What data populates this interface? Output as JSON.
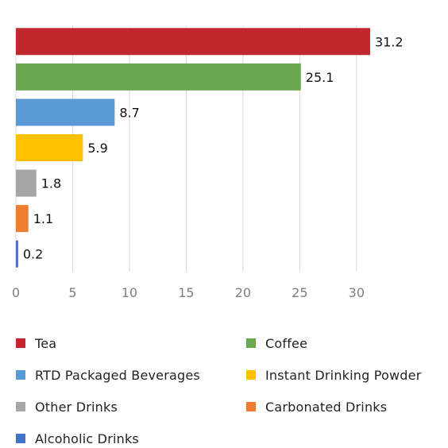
{
  "chart_data": {
    "type": "bar",
    "orientation": "horizontal",
    "categories": [
      "Tea",
      "Coffee",
      "RTD Packaged Beverages",
      "Instant Drinking Powder",
      "Other Drinks",
      "Carbonated Drinks",
      "Alcoholic Drinks"
    ],
    "values": [
      31.2,
      25.1,
      8.7,
      5.9,
      1.8,
      1.1,
      0.2
    ],
    "colors": [
      "#c1272d",
      "#6aa84f",
      "#5b9bd5",
      "#ffc000",
      "#a6a6a6",
      "#ed7d31",
      "#4472c4"
    ],
    "x_ticks": [
      "0",
      "5",
      "10",
      "15",
      "20",
      "25",
      "30"
    ],
    "xlim": [
      0,
      34
    ],
    "grid": "vertical",
    "legend_placement": "bottom",
    "title": "",
    "xlabel": "",
    "ylabel": ""
  },
  "legend": {
    "items": [
      {
        "label": "Tea",
        "color": "#c1272d"
      },
      {
        "label": "Coffee",
        "color": "#6aa84f"
      },
      {
        "label": "RTD Packaged Beverages",
        "color": "#5b9bd5"
      },
      {
        "label": "Instant Drinking Powder",
        "color": "#ffc000"
      },
      {
        "label": "Other Drinks",
        "color": "#a6a6a6"
      },
      {
        "label": "Carbonated Drinks",
        "color": "#ed7d31"
      },
      {
        "label": "Alcoholic Drinks",
        "color": "#4472c4"
      }
    ]
  }
}
